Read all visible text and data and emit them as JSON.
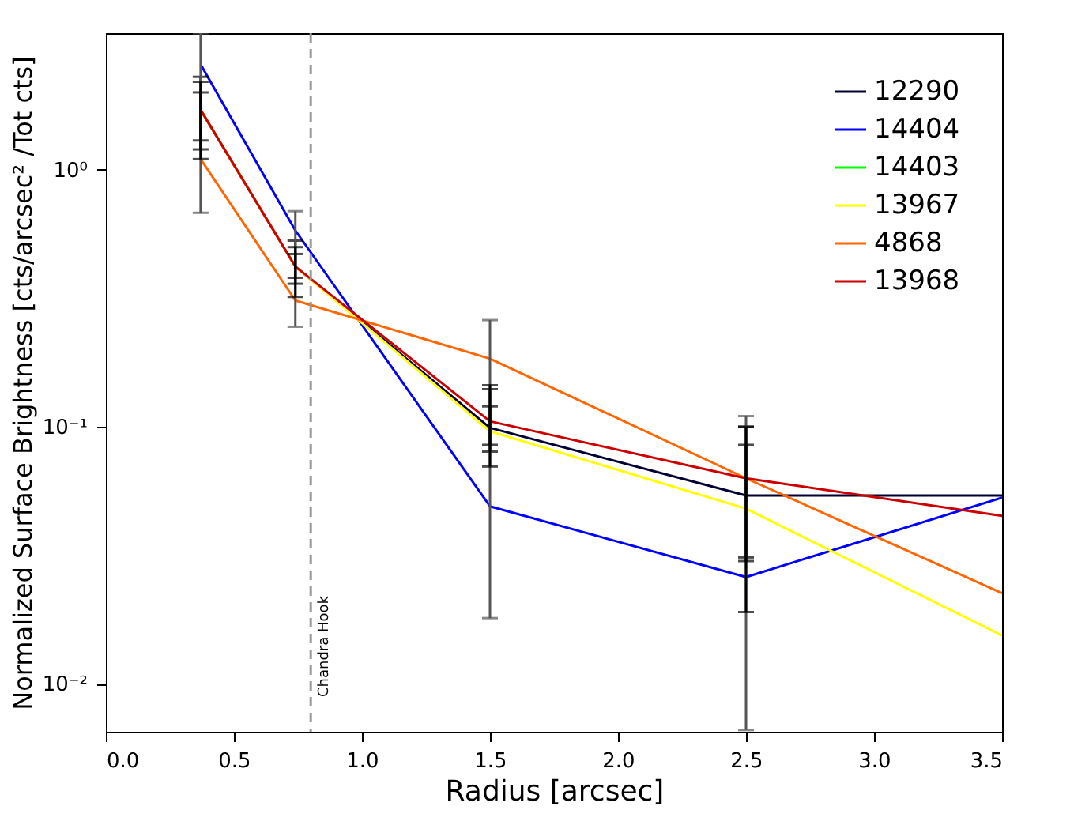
{
  "chart_data": {
    "type": "line",
    "xlabel": "Radius [arcsec]",
    "ylabel": "Normalized Surface Brightness [cts/arcsec² /Tot cts]",
    "x": [
      0.37,
      0.74,
      1.5,
      2.5,
      3.5
    ],
    "series": [
      {
        "name": "12290",
        "color": "#000033",
        "values": [
          1.71,
          0.42,
          0.099,
          0.054,
          0.054
        ],
        "errors": [
          [
            1.3,
            2.3
          ],
          [
            0.36,
            0.53
          ],
          [
            0.08,
            0.14
          ],
          [
            0.031,
            0.1
          ],
          null
        ]
      },
      {
        "name": "14404",
        "color": "#0000ff",
        "values": [
          2.57,
          0.58,
          0.049,
          0.026,
          0.053
        ],
        "errors": [
          [
            0.68,
            3.4
          ],
          [
            0.245,
            0.69
          ],
          [
            0.018,
            0.26
          ],
          [
            0.0066,
            0.11
          ],
          null
        ]
      },
      {
        "name": "14403",
        "color": "#00ff00",
        "values": [
          null,
          null,
          null,
          null,
          null
        ]
      },
      {
        "name": "13967",
        "color": "#ffff00",
        "values": [
          1.71,
          0.42,
          0.096,
          0.048,
          0.0154
        ],
        "errors": [
          [
            1.2,
            2.0
          ],
          [
            0.38,
            0.47
          ],
          [
            0.085,
            0.12
          ],
          [
            0.03,
            0.085
          ],
          null
        ]
      },
      {
        "name": "4868",
        "color": "#ff6600",
        "values": [
          1.1,
          0.31,
          0.184,
          0.063,
          0.0225
        ]
      },
      {
        "name": "13968",
        "color": "#cc0000",
        "values": [
          1.71,
          0.42,
          0.105,
          0.063,
          0.045
        ],
        "errors": [
          [
            1.1,
            2.2
          ],
          [
            0.32,
            0.5
          ],
          [
            0.07,
            0.145
          ],
          [
            0.019,
            0.1
          ],
          null
        ]
      }
    ],
    "log": "y",
    "xlim": [
      0,
      3.5
    ],
    "ylim": [
      0.0065,
      3.4
    ],
    "xticks": [
      {
        "value": 0,
        "label": "0.0"
      },
      {
        "value": 0.5,
        "label": "0.5"
      },
      {
        "value": 1,
        "label": "1.0"
      },
      {
        "value": 1.5,
        "label": "1.5"
      },
      {
        "value": 2,
        "label": "2.0"
      },
      {
        "value": 2.5,
        "label": "2.5"
      },
      {
        "value": 3,
        "label": "3.0"
      },
      {
        "value": 3.5,
        "label": "3.5"
      }
    ],
    "yticks": [
      {
        "value": 0.01,
        "label": "10⁻²"
      },
      {
        "value": 0.1,
        "label": "10⁻¹"
      },
      {
        "value": 1,
        "label": "10⁰"
      }
    ],
    "ref_lines": [
      {
        "axis": "x",
        "value": 0.8,
        "label": "Chandra Hook",
        "color": "#999999",
        "line_style": "dashed"
      }
    ],
    "legend": "top right",
    "grid": false,
    "marker": "none",
    "line_style": "solid"
  }
}
